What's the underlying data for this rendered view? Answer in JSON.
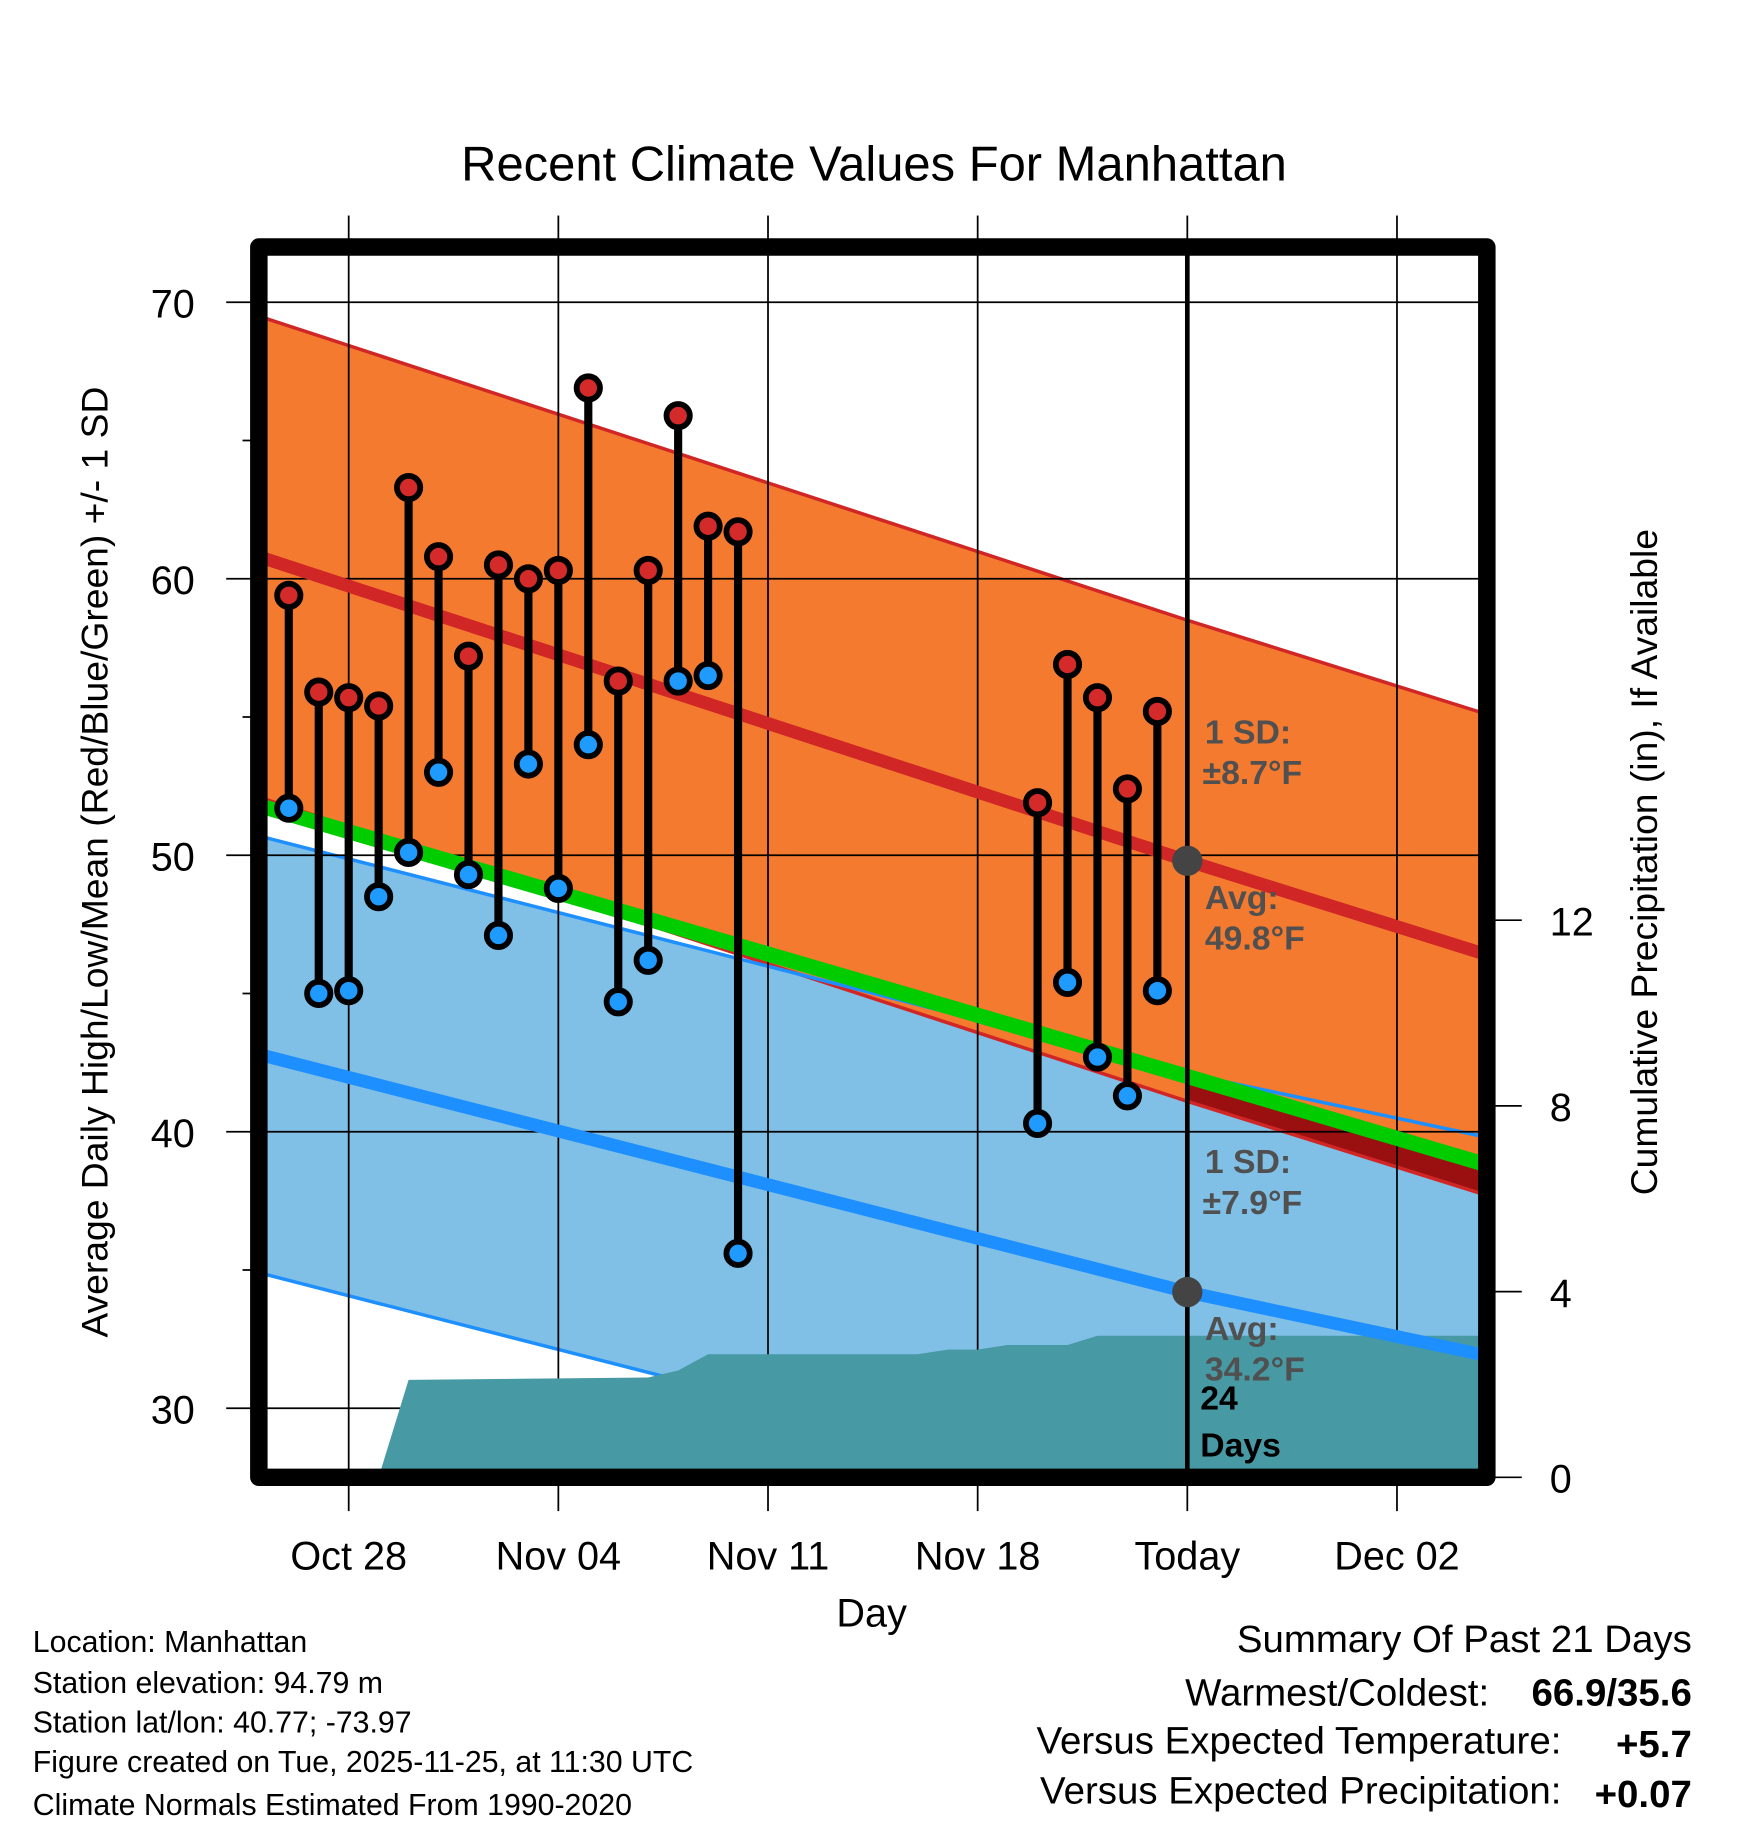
{
  "chart_data": {
    "type": "line",
    "title": "Recent Climate Values For Manhattan",
    "xlabel": "Day",
    "ylabel": "Average Daily High/Low/Mean (Red/Blue/Green) +/- 1 SD",
    "ylabel_right": "Cumulative Precipitation (in), If Available",
    "xlim": [
      "2025-10-25",
      "2025-12-05"
    ],
    "ylim": [
      27.5,
      72
    ],
    "ylim_right": [
      0,
      26.5
    ],
    "grid": true,
    "x_ticks": [
      {
        "date": "2025-10-28",
        "label": "Oct 28"
      },
      {
        "date": "2025-11-04",
        "label": "Nov 04"
      },
      {
        "date": "2025-11-11",
        "label": "Nov 11"
      },
      {
        "date": "2025-11-18",
        "label": "Nov 18"
      },
      {
        "date": "2025-11-25",
        "label": "Today"
      },
      {
        "date": "2025-12-02",
        "label": "Dec 02"
      }
    ],
    "y_ticks": [
      "30",
      "40",
      "50",
      "60",
      "70"
    ],
    "y_ticks_right": [
      "0",
      "4",
      "8",
      "12"
    ],
    "today": "2025-11-25",
    "observed": [
      {
        "date": "2025-10-26",
        "high": 59.4,
        "low": 51.7
      },
      {
        "date": "2025-10-27",
        "high": 55.9,
        "low": 45.0
      },
      {
        "date": "2025-10-28",
        "high": 55.7,
        "low": 45.1
      },
      {
        "date": "2025-10-29",
        "high": 55.4,
        "low": 48.5
      },
      {
        "date": "2025-10-30",
        "high": 63.3,
        "low": 50.1
      },
      {
        "date": "2025-10-31",
        "high": 60.8,
        "low": 53.0
      },
      {
        "date": "2025-11-01",
        "high": 57.2,
        "low": 49.3
      },
      {
        "date": "2025-11-02",
        "high": 60.5,
        "low": 47.1
      },
      {
        "date": "2025-11-03",
        "high": 60.0,
        "low": 53.3
      },
      {
        "date": "2025-11-04",
        "high": 60.3,
        "low": 48.8
      },
      {
        "date": "2025-11-05",
        "high": 66.9,
        "low": 54.0
      },
      {
        "date": "2025-11-06",
        "high": 56.3,
        "low": 44.7
      },
      {
        "date": "2025-11-07",
        "high": 60.3,
        "low": 46.2
      },
      {
        "date": "2025-11-08",
        "high": 65.9,
        "low": 56.3
      },
      {
        "date": "2025-11-09",
        "high": 61.9,
        "low": 56.5
      },
      {
        "date": "2025-11-10",
        "high": 61.7,
        "low": 35.6
      },
      {
        "date": "2025-11-20",
        "high": 51.9,
        "low": 40.3
      },
      {
        "date": "2025-11-21",
        "high": 56.9,
        "low": 45.4
      },
      {
        "date": "2025-11-22",
        "high": 55.7,
        "low": 42.7
      },
      {
        "date": "2025-11-23",
        "high": 52.4,
        "low": 41.3
      },
      {
        "date": "2025-11-24",
        "high": 55.2,
        "low": 45.1
      }
    ],
    "normals": {
      "dates": [
        "2025-10-25",
        "2025-11-25",
        "2025-12-05"
      ],
      "high_avg": [
        60.8,
        49.8,
        46.4
      ],
      "high_sd": 8.7,
      "low_avg": [
        42.8,
        34.2,
        31.9
      ],
      "low_sd": 7.9,
      "mean": [
        51.8,
        42.0,
        38.8
      ]
    },
    "precipitation": [
      {
        "date": "2025-10-29",
        "value": 0.0
      },
      {
        "date": "2025-10-30",
        "value": 2.1
      },
      {
        "date": "2025-11-07",
        "value": 2.15
      },
      {
        "date": "2025-11-08",
        "value": 2.3
      },
      {
        "date": "2025-11-09",
        "value": 2.65
      },
      {
        "date": "2025-11-16",
        "value": 2.65
      },
      {
        "date": "2025-11-17",
        "value": 2.75
      },
      {
        "date": "2025-11-18",
        "value": 2.75
      },
      {
        "date": "2025-11-19",
        "value": 2.85
      },
      {
        "date": "2025-11-21",
        "value": 2.85
      },
      {
        "date": "2025-11-22",
        "value": 3.05
      },
      {
        "date": "2025-12-05",
        "value": 3.05
      }
    ],
    "annotations": {
      "high_sd_line1": "1 SD:",
      "high_sd_line2": "±8.7°F",
      "high_avg_line1": "Avg:",
      "high_avg_line2": "49.8°F",
      "low_sd_line1": "1 SD:",
      "low_sd_line2": "±7.9°F",
      "low_avg_line1": "Avg:",
      "low_avg_line2": "34.2°F",
      "days_line1": "24",
      "days_line2": "Days"
    },
    "colors": {
      "high_band": "#f47a2f",
      "high_line": "#d02626",
      "low_band": "#80bfe6",
      "low_line": "#1e8fff",
      "mean_line": "#00cc00",
      "overlap": "#9a1010",
      "precip": "#4799a3",
      "annotation": "#505050"
    }
  },
  "footer": {
    "location": "Location: Manhattan",
    "elevation": "Station elevation: 94.79 m",
    "latlon": "Station lat/lon: 40.77; -73.97",
    "created": "Figure created on Tue, 2025-11-25, at 11:30 UTC",
    "normals": "Climate Normals Estimated From 1990-2020"
  },
  "summary": {
    "title": "Summary Of Past 21 Days",
    "warmest_label": "Warmest/Coldest:",
    "warmest_value": "66.9/35.6",
    "temp_label": "Versus Expected Temperature:",
    "temp_value": "+5.7",
    "temp_color": "#d02626",
    "precip_label": "Versus Expected Precipitation:",
    "precip_value": "+0.07",
    "precip_color": "#22b822"
  }
}
